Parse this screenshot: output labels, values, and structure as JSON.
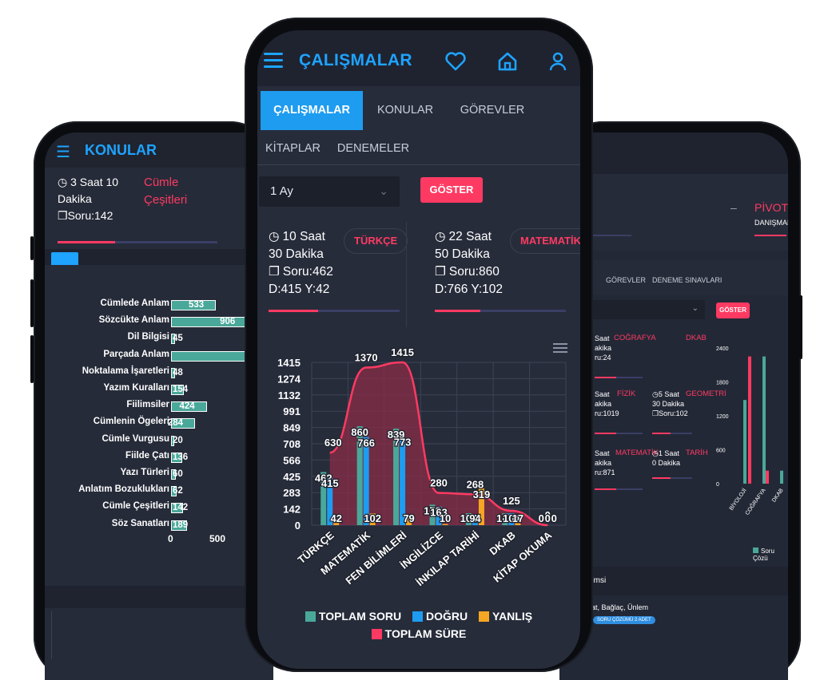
{
  "center": {
    "header_title": "ÇALIŞMALAR",
    "tabs_row1": [
      "ÇALIŞMALAR",
      "KONULAR",
      "GÖREVLER"
    ],
    "tabs_row2": [
      "KİTAPLAR",
      "DENEMELER"
    ],
    "period_value": "1 Ay",
    "goster_label": "GÖSTER",
    "cards": [
      {
        "time1": "10 Saat",
        "time2": "30 Dakika",
        "soru": "Soru:462",
        "dy": "D:415 Y:42",
        "subject": "TÜRKÇE",
        "progress": 0.38
      },
      {
        "time1": "22 Saat",
        "time2": "50 Dakika",
        "soru": "Soru:860",
        "dy": "D:766 Y:102",
        "subject": "MATEMATİK",
        "progress": 0.35
      }
    ],
    "legend": [
      "TOPLAM SORU",
      "DOĞRU",
      "YANLIŞ",
      "TOPLAM SÜRE"
    ]
  },
  "chart_data": [
    {
      "type": "bar",
      "categories": [
        "TÜRKÇE",
        "MATEMATİK",
        "FEN BİLİMLERİ",
        "İNGİLİZCE",
        "İNKILAP TARİHİ",
        "DKAB",
        "KİTAP OKUMA"
      ],
      "series": [
        {
          "name": "TOPLAM SORU",
          "values": [
            462,
            860,
            839,
            178,
            104,
            104,
            0
          ],
          "color": "#4aa89a"
        },
        {
          "name": "DOĞRU",
          "values": [
            415,
            766,
            773,
            163,
            94,
            104,
            0
          ],
          "color": "#1e9cf0"
        },
        {
          "name": "YANLIŞ",
          "values": [
            42,
            102,
            79,
            10,
            319,
            17,
            0
          ],
          "color": "#f5a623"
        },
        {
          "name": "TOPLAM SÜRE",
          "type": "area",
          "values": [
            630,
            1370,
            1415,
            280,
            268,
            125,
            0
          ],
          "color": "#ff3a62"
        }
      ],
      "yticks": [
        "1415",
        "1274",
        "1132",
        "991",
        "849",
        "708",
        "566",
        "425",
        "283",
        "142",
        "0"
      ],
      "ylim": [
        0,
        1415
      ],
      "grid": true,
      "legend_position": "bottom"
    },
    {
      "type": "bar",
      "orientation": "horizontal",
      "categories": [
        "Cümlede Anlam",
        "Sözcükte Anlam",
        "Dil Bilgisi",
        "Parçada Anlam",
        "Noktalama İşaretleri",
        "Yazım Kuralları",
        "Fiilimsiler",
        "Cümlenin Ögeleri",
        "Cümle Vurgusu",
        "Fiilde Çatı",
        "Yazı Türleri",
        "Anlatım Bozuklukları",
        "Cümle Çeşitleri",
        "Söz Sanatları"
      ],
      "values": [
        533,
        906,
        45,
        1100,
        48,
        154,
        424,
        284,
        20,
        136,
        60,
        62,
        142,
        189
      ],
      "value_labels": [
        "533",
        "906",
        "45",
        "",
        "48",
        "154",
        "424",
        "284",
        "20",
        "136",
        "60",
        "62",
        "142",
        "189"
      ],
      "xticks": [
        "0",
        "500"
      ],
      "xlim": [
        0,
        1100
      ]
    },
    {
      "type": "bar",
      "series": [
        {
          "name": "Soru Çözü",
          "values": [
            1480,
            2250,
            230
          ],
          "color": "#4aa89a"
        }
      ],
      "categories": [
        "BİYOLOJİ",
        "COĞRAFYA",
        "DKAB"
      ],
      "yticks": [
        "2400",
        "1800",
        "1200",
        "600",
        "0"
      ],
      "ylim": [
        0,
        2400
      ]
    }
  ],
  "left": {
    "header_title": "KONULAR",
    "time1": "3 Saat 10",
    "time2": "Dakika",
    "soru": "Soru:142",
    "subject": "Cümle Çeşitleri",
    "progress": 0.36
  },
  "right": {
    "pivot": "PİVOT",
    "danisman": "DANIŞMAN",
    "dash": "–",
    "tabs": [
      "GÖREVLER",
      "DENEME SINAVLARI"
    ],
    "goster_label": "GÖSTER",
    "cards": [
      {
        "a": "Saat",
        "b": "akika",
        "c": "ru:24",
        "subj": "COĞRAFYA",
        "subj2": "DKAB"
      },
      {
        "a": "Saat",
        "b": "akika",
        "c": "ru:1019",
        "subj": "FİZİK",
        "t1": "5 Saat",
        "t2": "30 Dakika",
        "soru": "Soru:102",
        "subj2": "GEOMETRİ"
      },
      {
        "a": "Saat",
        "b": "akika",
        "c": "ru:871",
        "subj": "MATEMATİK",
        "t1": "1 Saat",
        "t2": "0 Dakika",
        "subj2": "TARİH"
      }
    ],
    "legend": "Soru Çözü",
    "band": "ilimsi",
    "foot": "at, Bağlaç, Ünlem",
    "badge": "SORU ÇÖZÜMÜ 2 ADET"
  },
  "colors": {
    "accent": "#1ea3ff",
    "pink": "#ff3a62",
    "teal": "#4aa89a",
    "orange": "#f5a623",
    "bg": "#262b39"
  }
}
